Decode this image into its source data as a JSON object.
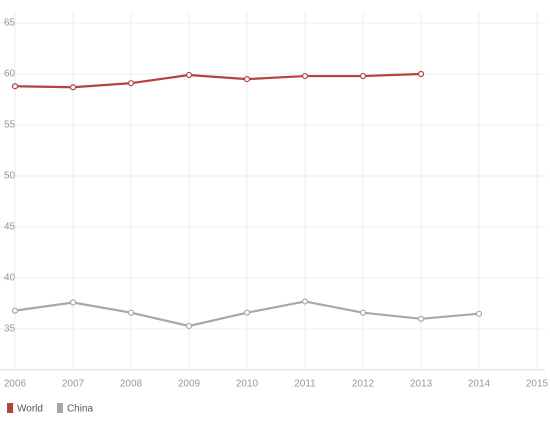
{
  "chart_data": {
    "type": "line",
    "x": [
      2006,
      2007,
      2008,
      2009,
      2010,
      2011,
      2012,
      2013,
      2014
    ],
    "series": [
      {
        "name": "World",
        "color": "#b5443f",
        "values": [
          58.8,
          58.7,
          59.1,
          59.9,
          59.5,
          59.8,
          59.8,
          60.0,
          null
        ]
      },
      {
        "name": "China",
        "color": "#a8a8a8",
        "values": [
          36.8,
          37.6,
          36.6,
          35.3,
          36.6,
          37.7,
          36.6,
          36.0,
          36.5
        ]
      }
    ],
    "xlim": [
      2006,
      2015
    ],
    "xticks": [
      2006,
      2007,
      2008,
      2009,
      2010,
      2011,
      2012,
      2013,
      2014,
      2015
    ],
    "ylim": [
      31,
      66
    ],
    "yticks": [
      35,
      40,
      45,
      50,
      55,
      60,
      65
    ],
    "grid": true
  }
}
